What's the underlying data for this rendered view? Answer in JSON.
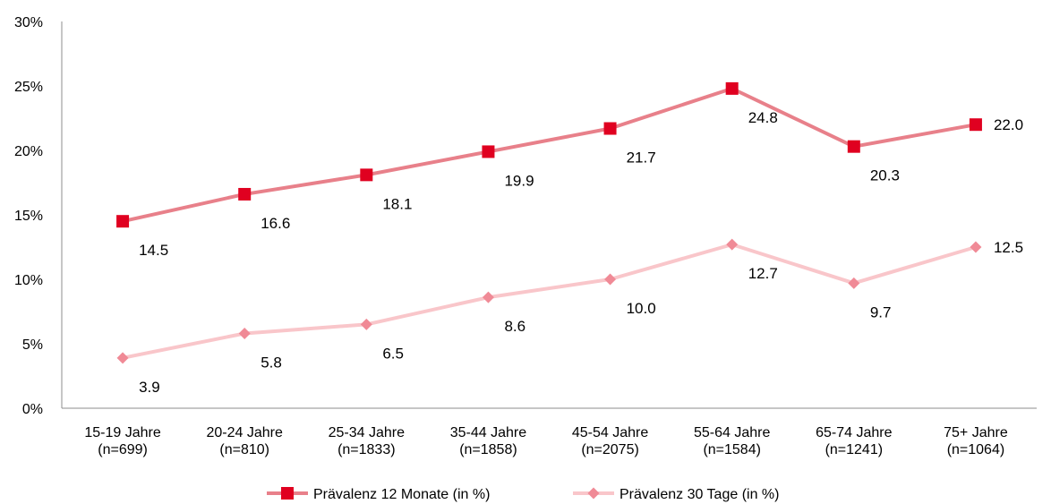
{
  "chart_data": {
    "type": "line",
    "categories": [
      [
        "15-19 Jahre",
        "(n=699)"
      ],
      [
        "20-24 Jahre",
        "(n=810)"
      ],
      [
        "25-34 Jahre",
        "(n=1833)"
      ],
      [
        "35-44 Jahre",
        "(n=1858)"
      ],
      [
        "45-54 Jahre",
        "(n=2075)"
      ],
      [
        "55-64 Jahre",
        "(n=1584)"
      ],
      [
        "65-74 Jahre",
        "(n=1241)"
      ],
      [
        "75+ Jahre",
        "(n=1064)"
      ]
    ],
    "series": [
      {
        "name": "Prävalenz 12 Monate (in %)",
        "values": [
          14.5,
          16.6,
          18.1,
          19.9,
          21.7,
          24.8,
          20.3,
          22.0
        ],
        "labels": [
          "14.5",
          "16.6",
          "18.1",
          "19.9",
          "21.7",
          "24.8",
          "20.3",
          "22.0"
        ],
        "line_color": "#e8808a",
        "marker_color": "#e00020",
        "marker": "square"
      },
      {
        "name": "Prävalenz 30 Tage (in %)",
        "values": [
          3.9,
          5.8,
          6.5,
          8.6,
          10.0,
          12.7,
          9.7,
          12.5
        ],
        "labels": [
          "3.9",
          "5.8",
          "6.5",
          "8.6",
          "10.0",
          "12.7",
          "9.7",
          "12.5"
        ],
        "line_color": "#f9c6ca",
        "marker_color": "#f08a96",
        "marker": "diamond"
      }
    ],
    "ylim": [
      0,
      30
    ],
    "yticks": [
      "0%",
      "5%",
      "10%",
      "15%",
      "20%",
      "25%",
      "30%"
    ],
    "ytick_values": [
      0,
      5,
      10,
      15,
      20,
      25,
      30
    ],
    "grid": false,
    "legend_position": "bottom"
  }
}
